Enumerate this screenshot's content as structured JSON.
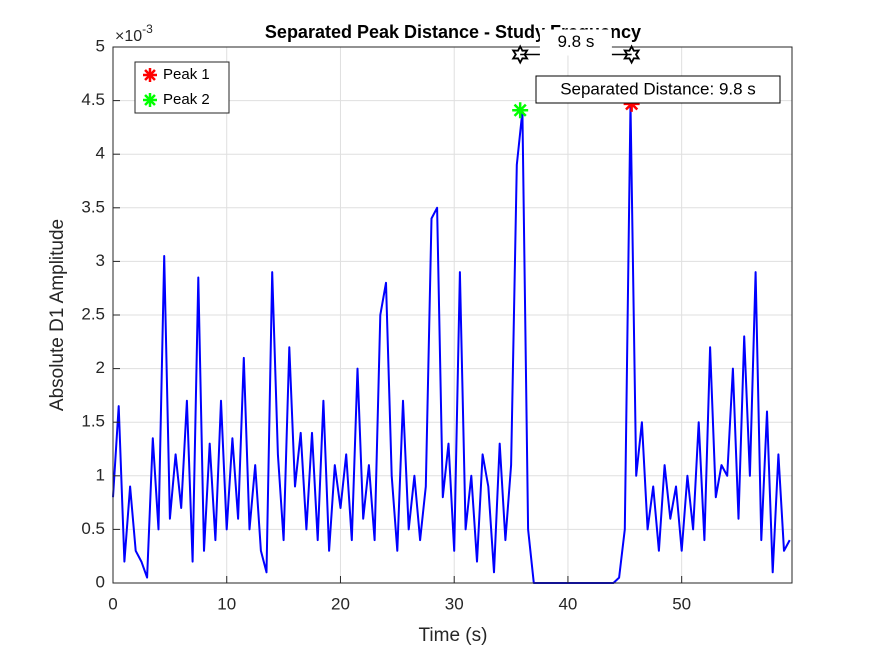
{
  "chart_data": {
    "type": "line",
    "title": "Separated Peak Distance - Study Frequency",
    "xlabel": "Time (s)",
    "ylabel": "Absolute D1 Amplitude",
    "y_exponent": {
      "base": "×10",
      "power": "-3"
    },
    "xlim": [
      0,
      59.7
    ],
    "ylim": [
      0,
      5
    ],
    "xticks": [
      0,
      10,
      20,
      30,
      40,
      50
    ],
    "yticks": [
      0,
      0.5,
      1,
      1.5,
      2,
      2.5,
      3,
      3.5,
      4,
      4.5,
      5
    ],
    "grid": true,
    "legend_position": "upper-left",
    "x": [
      0,
      0.5,
      1,
      1.5,
      2,
      2.5,
      3,
      3.5,
      4,
      4.5,
      5,
      5.5,
      6,
      6.5,
      7,
      7.5,
      8,
      8.5,
      9,
      9.5,
      10,
      10.5,
      11,
      11.5,
      12,
      12.5,
      13,
      13.5,
      14,
      14.5,
      15,
      15.5,
      16,
      16.5,
      17,
      17.5,
      18,
      18.5,
      19,
      19.5,
      20,
      20.5,
      21,
      21.5,
      22,
      22.5,
      23,
      23.5,
      24,
      24.5,
      25,
      25.5,
      26,
      26.5,
      27,
      27.5,
      28,
      28.5,
      29,
      29.5,
      30,
      30.5,
      31,
      31.5,
      32,
      32.5,
      33,
      33.5,
      34,
      34.5,
      35,
      35.5,
      36,
      36.5,
      37,
      37.5,
      38,
      38.5,
      39,
      39.5,
      40,
      40.5,
      41,
      41.5,
      42,
      42.5,
      43,
      43.5,
      44,
      44.5,
      45,
      45.5,
      46,
      46.5,
      47,
      47.5,
      48,
      48.5,
      49,
      49.5,
      50,
      50.5,
      51,
      51.5,
      52,
      52.5,
      53,
      53.5,
      54,
      54.5,
      55,
      55.5,
      56,
      56.5,
      57,
      57.5,
      58,
      58.5,
      59,
      59.5
    ],
    "series": [
      {
        "color": "#0000ff",
        "values": [
          0.8,
          1.65,
          0.2,
          0.9,
          0.3,
          0.2,
          0.05,
          1.35,
          0.5,
          3.05,
          0.6,
          1.2,
          0.7,
          1.7,
          0.2,
          2.85,
          0.3,
          1.3,
          0.4,
          1.7,
          0.5,
          1.35,
          0.6,
          2.1,
          0.5,
          1.1,
          0.3,
          0.1,
          2.9,
          1.2,
          0.4,
          2.2,
          0.9,
          1.4,
          0.5,
          1.4,
          0.4,
          1.7,
          0.3,
          1.1,
          0.7,
          1.2,
          0.4,
          2.0,
          0.6,
          1.1,
          0.4,
          2.5,
          2.8,
          1.0,
          0.3,
          1.7,
          0.5,
          1.0,
          0.4,
          0.9,
          3.4,
          3.5,
          0.8,
          1.3,
          0.3,
          2.9,
          0.5,
          1.0,
          0.2,
          1.2,
          0.9,
          0.1,
          1.3,
          0.4,
          1.1,
          3.9,
          4.4,
          0.5,
          0,
          0,
          0,
          0,
          0,
          0,
          0,
          0,
          0,
          0,
          0,
          0,
          0,
          0,
          0,
          0.05,
          0.5,
          4.47,
          1.0,
          1.5,
          0.5,
          0.9,
          0.3,
          1.1,
          0.6,
          0.9,
          0.3,
          1.0,
          0.5,
          1.5,
          0.4,
          2.2,
          0.8,
          1.1,
          1.0,
          2.0,
          0.6,
          2.3,
          1.0,
          2.9,
          0.4,
          1.6,
          0.1,
          1.2,
          0.3,
          0.4
        ]
      }
    ],
    "peaks": [
      {
        "name": "Peak 1",
        "color": "#ff0000",
        "x": 45.6,
        "value": 4.47
      },
      {
        "name": "Peak 2",
        "color": "#00ff00",
        "x": 35.8,
        "value": 4.41
      }
    ],
    "distance_arrow": {
      "x": [
        35.8,
        45.6
      ],
      "y": 4.93,
      "label": "9.8 s"
    },
    "annotation": "Separated Distance: 9.8 s"
  }
}
